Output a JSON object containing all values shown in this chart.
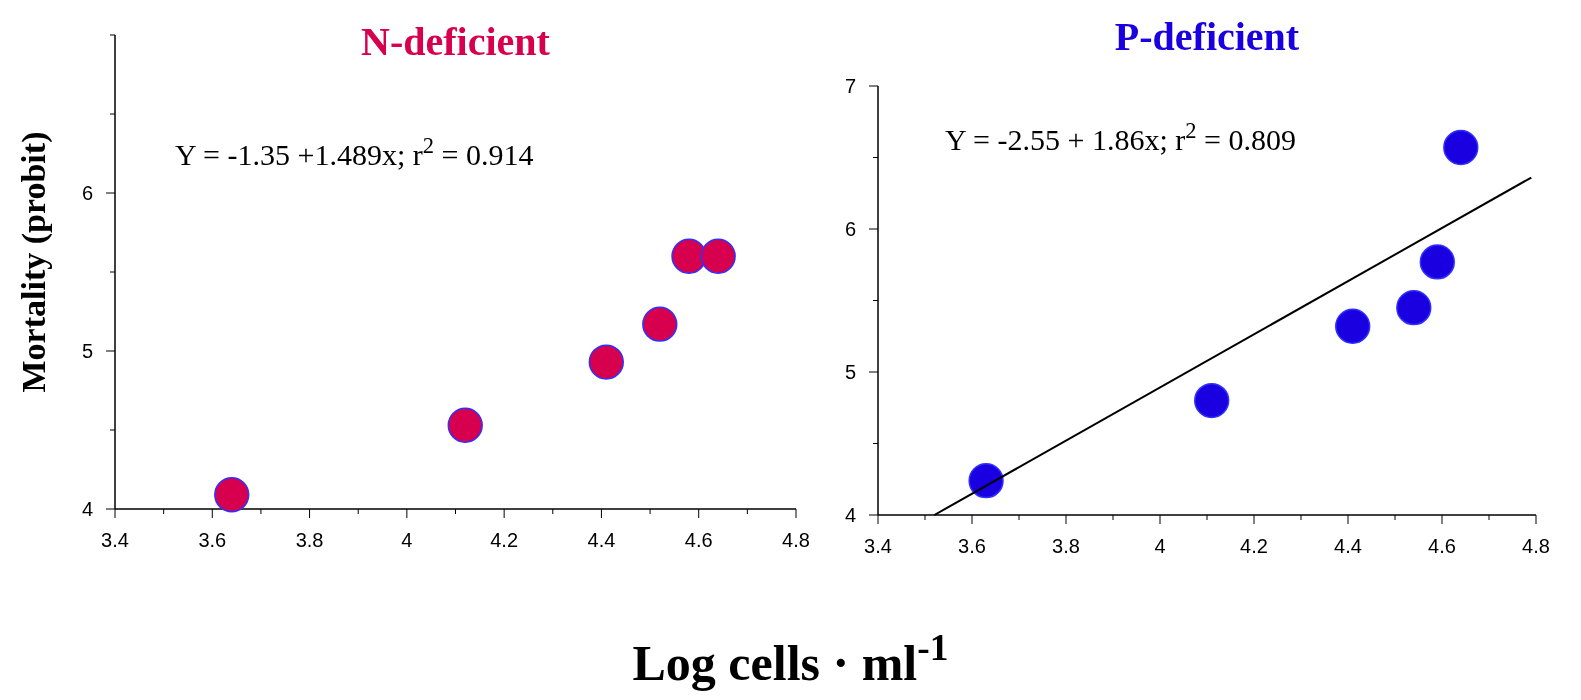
{
  "chart_data": [
    {
      "type": "scatter",
      "title": "N-deficient",
      "ylabel": "Mortality (probit)",
      "xlabel": "Log cells · ml$^{-1}$",
      "annotations": [
        "Y = -1.35 +1.489x; r$^{2}$ = 0.914"
      ],
      "xlim": [
        3.4,
        4.8
      ],
      "ylim": [
        4,
        7
      ],
      "xticks": [
        3.4,
        {
          "value": 3.5,
          "label": null
        },
        3.6,
        {
          "value": 3.7,
          "label": null
        },
        3.8,
        {
          "value": 3.9,
          "label": null
        },
        4,
        {
          "value": 4.1,
          "label": null
        },
        4.2,
        {
          "value": 4.3,
          "label": null
        },
        4.4,
        {
          "value": 4.5,
          "label": null
        },
        4.6,
        {
          "value": 4.7,
          "label": null
        },
        4.8
      ],
      "yticks": [
        4,
        {
          "value": 4.5,
          "label": null
        },
        5,
        {
          "value": 5.5,
          "label": null
        },
        6,
        {
          "value": 6.5,
          "label": null
        },
        {
          "value": 7,
          "label": null
        }
      ],
      "marker": "circle",
      "grid": false,
      "series": [
        {
          "color": "#d6004f",
          "x": [
            3.64,
            4.12,
            4.41,
            4.52,
            4.58,
            4.64
          ],
          "values": [
            4.09,
            4.53,
            4.93,
            5.17,
            5.6,
            5.6
          ]
        }
      ]
    },
    {
      "type": "scatter",
      "title": "P-deficient",
      "annotations": [
        "Y = -2.55 + 1.86x; r$^{2}$ = 0.809"
      ],
      "xlim": [
        3.4,
        4.8
      ],
      "ylim": [
        4,
        7
      ],
      "xticks": [
        3.4,
        {
          "value": 3.5,
          "label": null
        },
        3.6,
        {
          "value": 3.7,
          "label": null
        },
        3.8,
        {
          "value": 3.9,
          "label": null
        },
        4,
        {
          "value": 4.1,
          "label": null
        },
        4.2,
        {
          "value": 4.3,
          "label": null
        },
        4.4,
        {
          "value": 4.5,
          "label": null
        },
        4.6,
        {
          "value": 4.7,
          "label": null
        },
        4.8
      ],
      "yticks": [
        4,
        {
          "value": 4.5,
          "label": null
        },
        5,
        {
          "value": 5.5,
          "label": null
        },
        6,
        {
          "value": 6.5,
          "label": null
        },
        7
      ],
      "marker": "circle",
      "grid": false,
      "series": [
        {
          "color": "#1a00e0",
          "x": [
            3.63,
            4.11,
            4.41,
            4.54,
            4.59,
            4.64
          ],
          "values": [
            4.24,
            4.8,
            5.32,
            5.45,
            5.77,
            6.57
          ]
        },
        {
          "type": "line",
          "marker": "none",
          "color": "#000000",
          "x": [
            3.52,
            4.79
          ],
          "values": [
            4.0,
            6.36
          ]
        }
      ]
    }
  ]
}
